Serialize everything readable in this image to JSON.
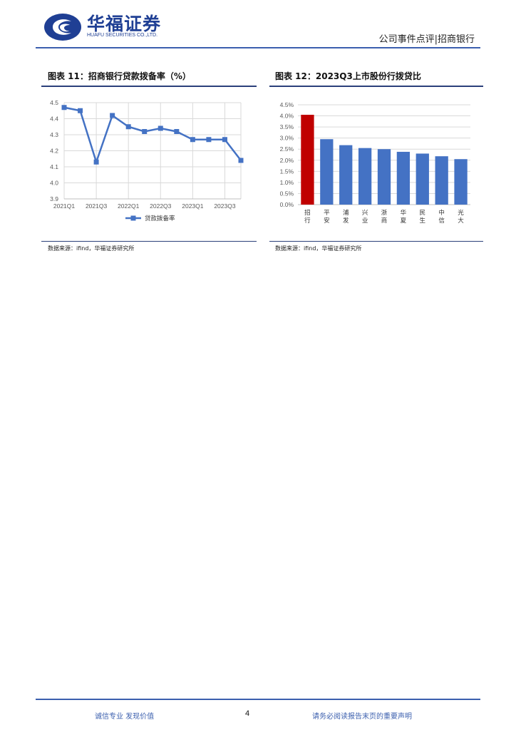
{
  "header": {
    "logo_cn": "华福证券",
    "logo_en": "HUAFU SECURITIES CO.,LTD.",
    "report_type": "公司事件点评|招商银行",
    "brand_color": "#1f3f94"
  },
  "figures": [
    {
      "title": "图表 11：招商银行贷款拨备率（%）",
      "source": "数据来源：ifind，华福证券研究所",
      "chart_data": {
        "type": "line",
        "categories": [
          "2021Q1",
          "2021Q2",
          "2021Q3",
          "2021Q4",
          "2022Q1",
          "2022Q2",
          "2022Q3",
          "2022Q4",
          "2023Q1",
          "2023Q2",
          "2023Q3",
          "2023Q4"
        ],
        "x_tick_labels": [
          "2021Q1",
          "2021Q3",
          "2022Q1",
          "2022Q3",
          "2023Q1",
          "2023Q3"
        ],
        "series": [
          {
            "name": "贷款拨备率",
            "values": [
              4.47,
              4.45,
              4.13,
              4.42,
              4.35,
              4.32,
              4.34,
              4.32,
              4.27,
              4.27,
              4.27,
              4.14
            ],
            "color": "#4472c4"
          }
        ],
        "ylim": [
          3.9,
          4.5
        ],
        "y_ticks": [
          "3.9",
          "4.0",
          "4.1",
          "4.2",
          "4.3",
          "4.4",
          "4.5"
        ],
        "grid": true,
        "legend": "bottom"
      }
    },
    {
      "title": "图表 12：2023Q3上市股份行拨贷比",
      "source": "数据来源：ifind，华福证券研究所",
      "chart_data": {
        "type": "bar",
        "categories": [
          "招行",
          "平安",
          "浦发",
          "兴业",
          "浙商",
          "华夏",
          "民生",
          "中信",
          "光大"
        ],
        "values": [
          4.05,
          2.95,
          2.68,
          2.55,
          2.5,
          2.38,
          2.3,
          2.18,
          2.05
        ],
        "bar_colors": [
          "#c00000",
          "#4472c4",
          "#4472c4",
          "#4472c4",
          "#4472c4",
          "#4472c4",
          "#4472c4",
          "#4472c4",
          "#4472c4"
        ],
        "ylim": [
          0,
          4.5
        ],
        "y_ticks": [
          "0.0%",
          "0.5%",
          "1.0%",
          "1.5%",
          "2.0%",
          "2.5%",
          "3.0%",
          "3.5%",
          "4.0%",
          "4.5%"
        ],
        "grid": true
      }
    }
  ],
  "footer": {
    "left": "诚信专业  发现价值",
    "page_number": "4",
    "right": "请务必阅读报告末页的重要声明",
    "accent": "#3b5fae"
  }
}
